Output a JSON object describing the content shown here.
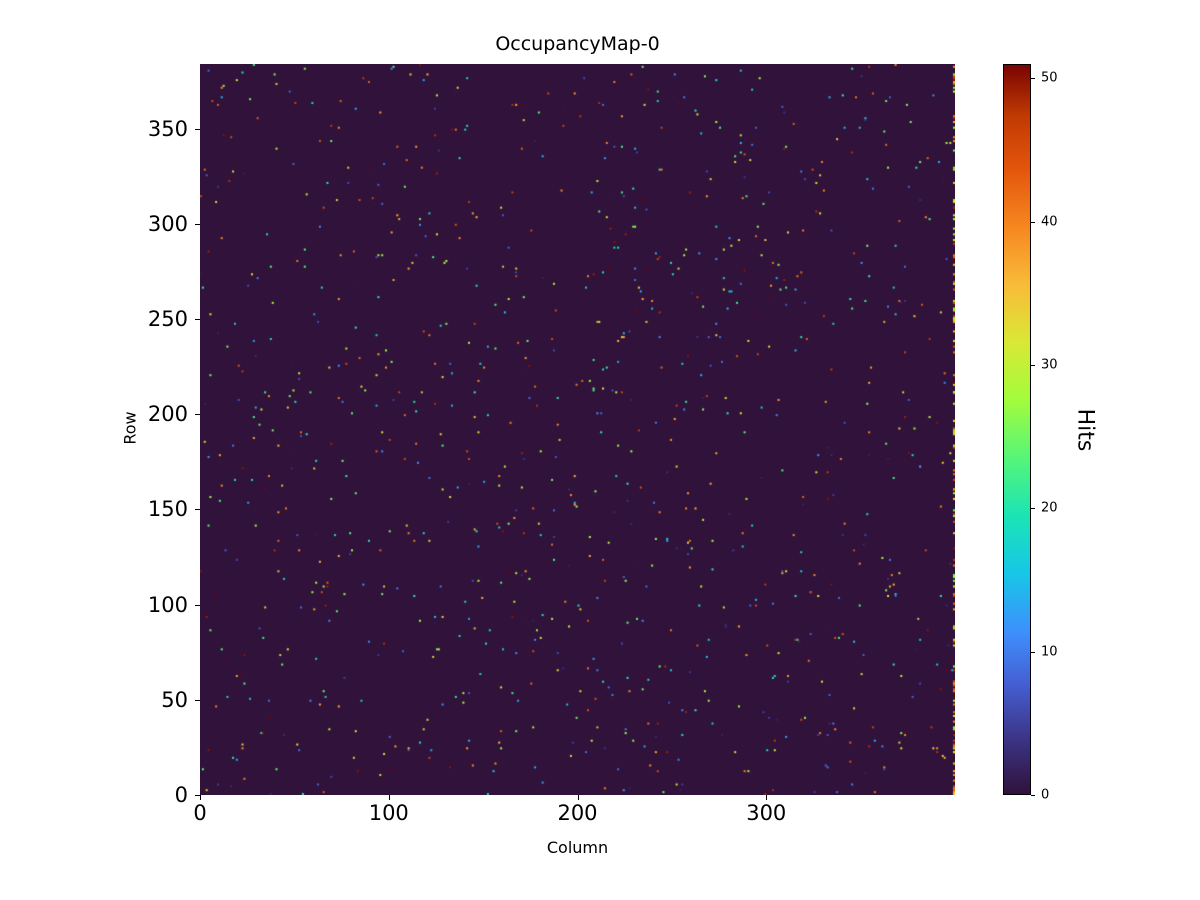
{
  "chart_data": {
    "type": "heatmap",
    "title": "OccupancyMap-0",
    "xlabel": "Column",
    "ylabel": "Row",
    "colorbar_label": "Hits",
    "xlim": [
      0,
      400
    ],
    "ylim": [
      0,
      384
    ],
    "zlim": [
      0,
      51
    ],
    "xticks": [
      0,
      100,
      200,
      300
    ],
    "yticks": [
      0,
      50,
      100,
      150,
      200,
      250,
      300,
      350
    ],
    "colorbar_ticks": [
      0,
      10,
      20,
      30,
      40,
      50
    ],
    "colormap": "turbo",
    "colormap_stops": [
      [
        0.0,
        "#30123b"
      ],
      [
        0.07,
        "#3b3180"
      ],
      [
        0.15,
        "#455ed2"
      ],
      [
        0.22,
        "#3e8efc"
      ],
      [
        0.3,
        "#18c5e8"
      ],
      [
        0.38,
        "#1ae4b6"
      ],
      [
        0.46,
        "#55f579"
      ],
      [
        0.54,
        "#a2fc3c"
      ],
      [
        0.62,
        "#d9e836"
      ],
      [
        0.7,
        "#f9ba38"
      ],
      [
        0.78,
        "#f6851f"
      ],
      [
        0.86,
        "#e2540c"
      ],
      [
        0.93,
        "#c03a03"
      ],
      [
        1.0,
        "#7a0402"
      ]
    ],
    "background_value": 0,
    "sparse_points": {
      "count": 1050,
      "value_min": 1,
      "value_max": 51,
      "seed": 7
    },
    "right_edge_column": {
      "column": 399,
      "count": 140,
      "value_min": 25,
      "value_max": 51
    }
  }
}
